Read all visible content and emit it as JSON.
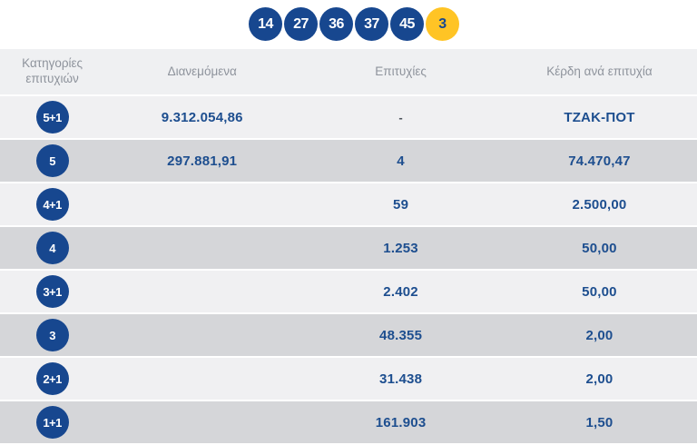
{
  "colors": {
    "ball_blue": "#17478F",
    "ball_yellow": "#FFC425",
    "value_text": "#1D4E8F",
    "header_text": "#8E939C",
    "row_light": "#F0F0F2",
    "row_dark": "#D5D6D9"
  },
  "drawn_numbers": {
    "main": [
      "14",
      "27",
      "36",
      "37",
      "45"
    ],
    "joker": "3"
  },
  "table": {
    "headers": [
      "Κατηγορίες επιτυχιών",
      "Διανεμόμενα",
      "Επιτυχίες",
      "Κέρδη ανά επιτυχία"
    ],
    "rows": [
      {
        "category": "5+1",
        "distributed": "9.312.054,86",
        "wins": "-",
        "profit": "ΤΖΑΚ-ΠΟΤ"
      },
      {
        "category": "5",
        "distributed": "297.881,91",
        "wins": "4",
        "profit": "74.470,47"
      },
      {
        "category": "4+1",
        "distributed": "",
        "wins": "59",
        "profit": "2.500,00"
      },
      {
        "category": "4",
        "distributed": "",
        "wins": "1.253",
        "profit": "50,00"
      },
      {
        "category": "3+1",
        "distributed": "",
        "wins": "2.402",
        "profit": "50,00"
      },
      {
        "category": "3",
        "distributed": "",
        "wins": "48.355",
        "profit": "2,00"
      },
      {
        "category": "2+1",
        "distributed": "",
        "wins": "31.438",
        "profit": "2,00"
      },
      {
        "category": "1+1",
        "distributed": "",
        "wins": "161.903",
        "profit": "1,50"
      }
    ]
  }
}
